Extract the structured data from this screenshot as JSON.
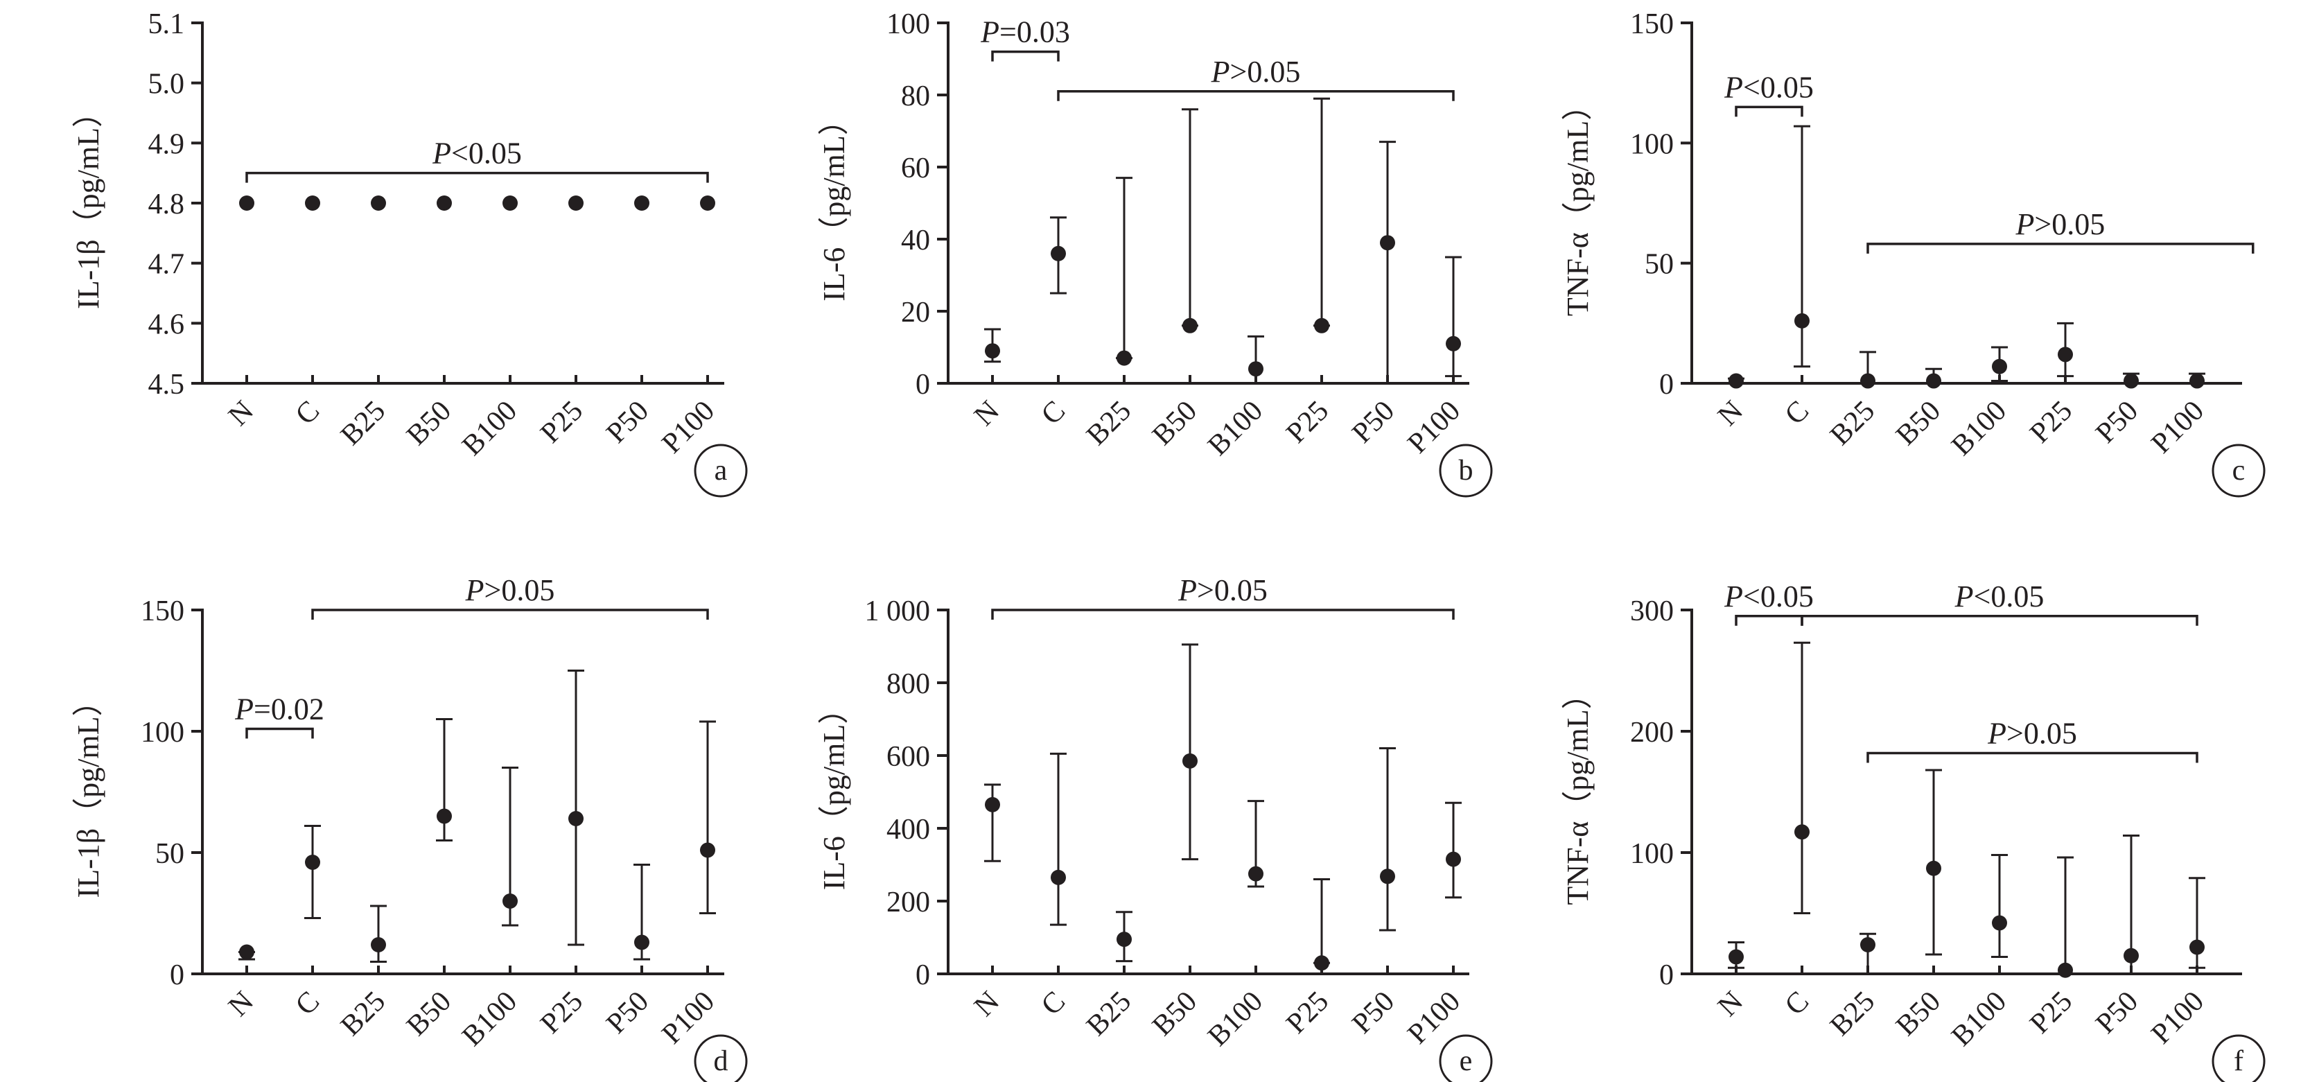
{
  "colors": {
    "ink": "#231f20",
    "background": "#ffffff"
  },
  "chart_data": [
    {
      "panel": "a",
      "type": "scatter",
      "error_bars": true,
      "ylabel": "IL-1β（pg/mL）",
      "ylim": [
        4.5,
        5.1
      ],
      "yticks": [
        4.5,
        4.6,
        4.7,
        4.8,
        4.9,
        5.0,
        5.1
      ],
      "ytick_labels": [
        "4.5",
        "4.6",
        "4.7",
        "4.8",
        "4.9",
        "5.0",
        "5.1"
      ],
      "categories": [
        "N",
        "C",
        "B25",
        "B50",
        "B100",
        "P25",
        "P50",
        "P100"
      ],
      "values": [
        4.8,
        4.8,
        4.8,
        4.8,
        4.8,
        4.8,
        4.8,
        4.8
      ],
      "err_low": [
        4.8,
        4.8,
        4.8,
        4.8,
        4.8,
        4.8,
        4.8,
        4.8
      ],
      "err_high": [
        4.8,
        4.8,
        4.8,
        4.8,
        4.8,
        4.8,
        4.8,
        4.8
      ],
      "annotations": [
        {
          "from": "N",
          "to": "P100",
          "level": 4.85,
          "p_italic": "P",
          "p_rest": "<0.05"
        }
      ]
    },
    {
      "panel": "b",
      "type": "scatter",
      "error_bars": true,
      "ylabel": "IL-6（pg/mL）",
      "ylim": [
        0,
        100
      ],
      "yticks": [
        0,
        20,
        40,
        60,
        80,
        100
      ],
      "ytick_labels": [
        "0",
        "20",
        "40",
        "60",
        "80",
        "100"
      ],
      "categories": [
        "N",
        "C",
        "B25",
        "B50",
        "B100",
        "P25",
        "P50",
        "P100"
      ],
      "values": [
        9,
        36,
        7,
        16,
        4,
        16,
        39,
        11
      ],
      "err_low": [
        6,
        25,
        7,
        16,
        0,
        16,
        0,
        2
      ],
      "err_high": [
        15,
        46,
        57,
        76,
        13,
        79,
        67,
        35
      ],
      "annotations": [
        {
          "from": "N",
          "to": "C",
          "level": 92,
          "p_italic": "P",
          "p_rest": "=0.03"
        },
        {
          "from": "C",
          "to": "P100",
          "level": 81,
          "p_italic": "P",
          "p_rest": ">0.05"
        }
      ]
    },
    {
      "panel": "c",
      "type": "scatter",
      "error_bars": true,
      "ylabel": "TNF-α（pg/mL）",
      "ylim": [
        0,
        150
      ],
      "yticks": [
        0,
        50,
        100,
        150
      ],
      "ytick_labels": [
        "0",
        "50",
        "100",
        "150"
      ],
      "categories": [
        "N",
        "C",
        "B25",
        "B50",
        "B100",
        "P25",
        "P50",
        "P100"
      ],
      "values": [
        1,
        26,
        1,
        1,
        7,
        12,
        1,
        1
      ],
      "err_low": [
        0,
        7,
        0,
        0,
        1,
        3,
        0,
        0
      ],
      "err_high": [
        2,
        107,
        13,
        6,
        15,
        25,
        4,
        4
      ],
      "annotations": [
        {
          "from": "N",
          "to": "C",
          "level": 115,
          "p_italic": "P",
          "p_rest": "<0.05"
        },
        {
          "from": "B25",
          "to": "P100+",
          "level": 58,
          "p_italic": "P",
          "p_rest": ">0.05"
        }
      ]
    },
    {
      "panel": "d",
      "type": "scatter",
      "error_bars": true,
      "ylabel": "IL-1β（pg/mL）",
      "ylim": [
        0,
        150
      ],
      "yticks": [
        0,
        50,
        100,
        150
      ],
      "ytick_labels": [
        "0",
        "50",
        "100",
        "150"
      ],
      "categories": [
        "N",
        "C",
        "B25",
        "B50",
        "B100",
        "P25",
        "P50",
        "P100"
      ],
      "values": [
        9,
        46,
        12,
        65,
        30,
        64,
        13,
        51
      ],
      "err_low": [
        6,
        23,
        5,
        55,
        20,
        12,
        6,
        25
      ],
      "err_high": [
        9,
        61,
        28,
        105,
        85,
        125,
        45,
        104
      ],
      "annotations": [
        {
          "from": "N",
          "to": "C",
          "level": 101,
          "p_italic": "P",
          "p_rest": "=0.02"
        },
        {
          "from": "C",
          "to": "P100",
          "level": 150,
          "p_italic": "P",
          "p_rest": ">0.05"
        }
      ]
    },
    {
      "panel": "e",
      "type": "scatter",
      "error_bars": true,
      "ylabel": "IL-6（pg/mL）",
      "ylim": [
        0,
        1000
      ],
      "yticks": [
        0,
        200,
        400,
        600,
        800,
        1000
      ],
      "ytick_labels": [
        "0",
        "200",
        "400",
        "600",
        "800",
        "1 000"
      ],
      "categories": [
        "N",
        "C",
        "B25",
        "B50",
        "B100",
        "P25",
        "P50",
        "P100"
      ],
      "values": [
        465,
        265,
        95,
        585,
        275,
        30,
        268,
        315
      ],
      "err_low": [
        310,
        135,
        35,
        315,
        240,
        30,
        120,
        210
      ],
      "err_high": [
        520,
        605,
        170,
        905,
        475,
        260,
        620,
        470
      ],
      "annotations": [
        {
          "from": "N",
          "to": "P100",
          "level": 1000,
          "p_italic": "P",
          "p_rest": ">0.05"
        }
      ]
    },
    {
      "panel": "f",
      "type": "scatter",
      "error_bars": true,
      "ylabel": "TNF-α（pg/mL）",
      "ylim": [
        0,
        300
      ],
      "yticks": [
        0,
        100,
        200,
        300
      ],
      "ytick_labels": [
        "0",
        "100",
        "200",
        "300"
      ],
      "categories": [
        "N",
        "C",
        "B25",
        "B50",
        "B100",
        "P25",
        "P50",
        "P100"
      ],
      "values": [
        14,
        117,
        24,
        87,
        42,
        3,
        15,
        22
      ],
      "err_low": [
        5,
        50,
        0,
        16,
        14,
        0,
        0,
        5
      ],
      "err_high": [
        26,
        273,
        33,
        168,
        98,
        96,
        114,
        79
      ],
      "annotations": [
        {
          "from": "N",
          "to": "C",
          "level": 295,
          "p_italic": "P",
          "p_rest": "<0.05"
        },
        {
          "from": "C",
          "to": "P100",
          "level": 295,
          "p_italic": "P",
          "p_rest": "<0.05"
        },
        {
          "from": "B25",
          "to": "P100",
          "level": 182,
          "p_italic": "P",
          "p_rest": ">0.05"
        }
      ]
    }
  ]
}
